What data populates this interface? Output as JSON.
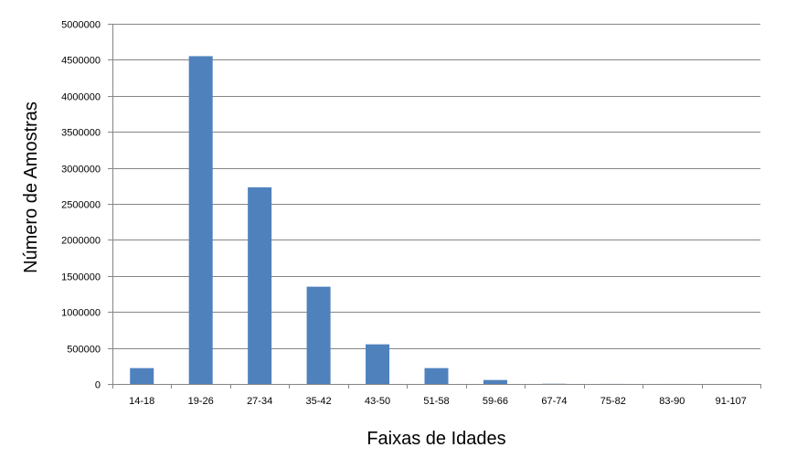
{
  "chart_data": {
    "type": "bar",
    "title": "",
    "xlabel": "Faixas de Idades",
    "ylabel": "Número de Amostras",
    "categories": [
      "14-18",
      "19-26",
      "27-34",
      "35-42",
      "43-50",
      "51-58",
      "59-66",
      "67-74",
      "75-82",
      "83-90",
      "91-107"
    ],
    "values": [
      220000,
      4550000,
      2730000,
      1350000,
      550000,
      220000,
      55000,
      3000,
      1000,
      500,
      200
    ],
    "ylim": [
      0,
      5000000
    ],
    "yticks": [
      "0",
      "500000",
      "1000000",
      "1500000",
      "2000000",
      "2500000",
      "3000000",
      "3500000",
      "4000000",
      "4500000",
      "5000000"
    ],
    "grid": true,
    "legend": "none",
    "bar_color": "#4f81bd",
    "grid_color": "#868686"
  }
}
